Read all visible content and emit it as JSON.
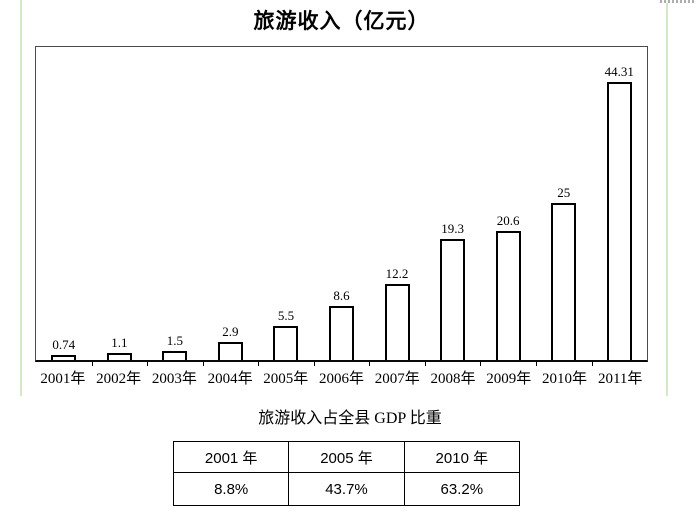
{
  "colors": {
    "guide_line": "#d2e8c6",
    "plot_border": "#4a4a4a",
    "axis": "#000000",
    "bar_fill": "#ffffff",
    "bar_border": "#000000",
    "text": "#000000",
    "background": "#ffffff"
  },
  "chart_data": {
    "type": "bar",
    "title": "旅游收入（亿元）",
    "categories": [
      "2001年",
      "2002年",
      "2003年",
      "2004年",
      "2005年",
      "2006年",
      "2007年",
      "2008年",
      "2009年",
      "2010年",
      "2011年"
    ],
    "values": [
      0.74,
      1.1,
      1.5,
      2.9,
      5.5,
      8.6,
      12.2,
      19.3,
      20.6,
      25,
      44.31
    ],
    "value_labels": [
      "0.74",
      "1.1",
      "1.5",
      "2.9",
      "5.5",
      "8.6",
      "12.2",
      "19.3",
      "20.6",
      "25",
      "44.31"
    ],
    "xlabel": "",
    "ylabel": "",
    "ylim": [
      0,
      50
    ],
    "grid": false,
    "legend": "none",
    "bar_style": "white fill, black outline, data labels above bars, no y-axis"
  },
  "gdp_table": {
    "title": "旅游收入占全县 GDP 比重",
    "headers": [
      "2001 年",
      "2005 年",
      "2010 年"
    ],
    "values": [
      "8.8%",
      "43.7%",
      "63.2%"
    ]
  }
}
